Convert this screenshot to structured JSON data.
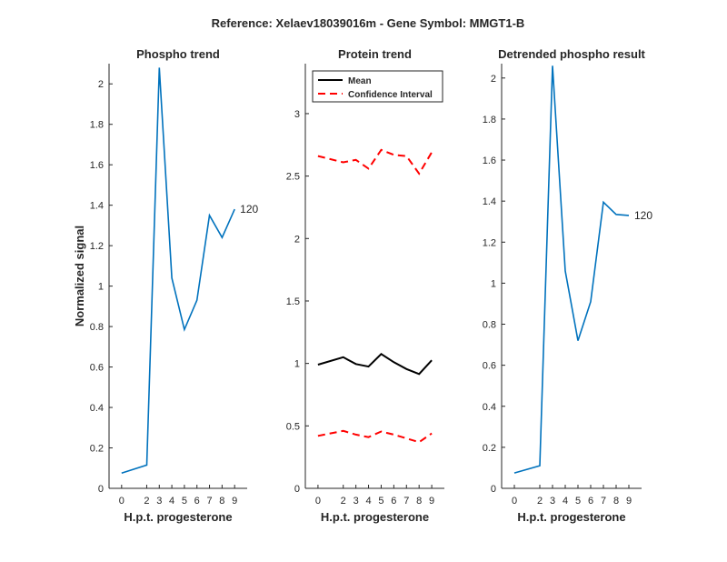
{
  "figure": {
    "title": "Reference:  Xelaev18039016m - Gene Symbol:  MMGT1-B"
  },
  "colors": {
    "blue": "#0072BD",
    "black": "#000000",
    "red": "#FF0000",
    "axis": "#262626"
  },
  "chart_data": [
    {
      "type": "line",
      "title": "Phospho trend",
      "xlabel": "H.p.t. progesterone",
      "ylabel": "Normalized signal",
      "x": [
        0,
        2,
        3,
        4,
        5,
        6,
        7,
        8,
        9
      ],
      "xlim": [
        -1,
        10
      ],
      "ylim": [
        0,
        2.1
      ],
      "yticks": [
        0,
        0.2,
        0.4,
        0.6,
        0.8,
        1,
        1.2,
        1.4,
        1.6,
        1.8,
        2
      ],
      "ytick_labels": [
        "0",
        "0.2",
        "0.4",
        "0.6",
        "0.8",
        "1",
        "1.2",
        "1.4",
        "1.6",
        "1.8",
        "2"
      ],
      "xticks": [
        0,
        2,
        3,
        4,
        5,
        6,
        7,
        8,
        9
      ],
      "xtick_labels": [
        "0",
        "2",
        "3",
        "4",
        "5",
        "6",
        "7",
        "8",
        "9"
      ],
      "series": [
        {
          "values": [
            0.075,
            0.115,
            2.08,
            1.04,
            0.785,
            0.93,
            1.35,
            1.24,
            1.38
          ],
          "color": "blue",
          "style": "solid"
        }
      ],
      "end_label": "120",
      "grid": false
    },
    {
      "type": "line",
      "title": "Protein trend",
      "xlabel": "H.p.t. progesterone",
      "ylabel": "",
      "x": [
        0,
        2,
        3,
        4,
        5,
        6,
        7,
        8,
        9
      ],
      "xlim": [
        -1,
        10
      ],
      "ylim": [
        0,
        3.4
      ],
      "yticks": [
        0,
        0.5,
        1,
        1.5,
        2,
        2.5,
        3
      ],
      "ytick_labels": [
        "0",
        "0.5",
        "1",
        "1.5",
        "2",
        "2.5",
        "3"
      ],
      "xticks": [
        0,
        2,
        3,
        4,
        5,
        6,
        7,
        8,
        9
      ],
      "xtick_labels": [
        "0",
        "2",
        "3",
        "4",
        "5",
        "6",
        "7",
        "8",
        "9"
      ],
      "series": [
        {
          "name": "Mean",
          "values": [
            0.99,
            1.05,
            0.995,
            0.975,
            1.075,
            1.01,
            0.955,
            0.915,
            1.025
          ],
          "color": "black",
          "style": "solid"
        },
        {
          "name": "Confidence Interval",
          "values": [
            2.66,
            2.61,
            2.63,
            2.56,
            2.71,
            2.67,
            2.66,
            2.52,
            2.69
          ],
          "color": "red",
          "style": "dashed"
        },
        {
          "values": [
            0.42,
            0.46,
            0.43,
            0.41,
            0.455,
            0.43,
            0.4,
            0.37,
            0.44
          ],
          "color": "red",
          "style": "dashed"
        }
      ],
      "legend": {
        "position": "top-left",
        "entries": [
          {
            "label": "Mean",
            "color": "black",
            "style": "solid"
          },
          {
            "label": "Confidence Interval",
            "color": "red",
            "style": "dashed"
          }
        ]
      },
      "grid": false
    },
    {
      "type": "line",
      "title": "Detrended phospho result",
      "xlabel": "H.p.t. progesterone",
      "ylabel": "",
      "x": [
        0,
        2,
        3,
        4,
        5,
        6,
        7,
        8,
        9
      ],
      "xlim": [
        -1,
        10
      ],
      "ylim": [
        0,
        2.07
      ],
      "yticks": [
        0,
        0.2,
        0.4,
        0.6,
        0.8,
        1,
        1.2,
        1.4,
        1.6,
        1.8,
        2
      ],
      "ytick_labels": [
        "0",
        "0.2",
        "0.4",
        "0.6",
        "0.8",
        "1",
        "1.2",
        "1.4",
        "1.6",
        "1.8",
        "2"
      ],
      "xticks": [
        0,
        2,
        3,
        4,
        5,
        6,
        7,
        8,
        9
      ],
      "xtick_labels": [
        "0",
        "2",
        "3",
        "4",
        "5",
        "6",
        "7",
        "8",
        "9"
      ],
      "series": [
        {
          "values": [
            0.075,
            0.11,
            2.06,
            1.06,
            0.72,
            0.91,
            1.395,
            1.335,
            1.33
          ],
          "color": "blue",
          "style": "solid"
        }
      ],
      "end_label": "120",
      "grid": false
    }
  ]
}
